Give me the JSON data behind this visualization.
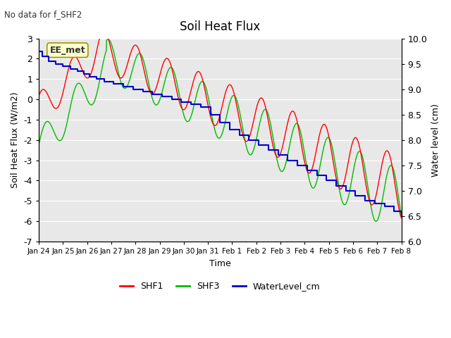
{
  "title": "Soil Heat Flux",
  "subtitle": "No data for f_SHF2",
  "xlabel": "Time",
  "ylabel_left": "Soil Heat Flux (W/m2)",
  "ylabel_right": "Water level (cm)",
  "ylim_left": [
    -7.0,
    3.0
  ],
  "ylim_right": [
    6.0,
    10.0
  ],
  "yticks_left": [
    -7,
    -6,
    -5,
    -4,
    -3,
    -2,
    -1,
    0,
    1,
    2,
    3
  ],
  "yticks_right": [
    6.0,
    6.5,
    7.0,
    7.5,
    8.0,
    8.5,
    9.0,
    9.5,
    10.0
  ],
  "bg_color": "#e8e8e8",
  "grid_color": "#ffffff",
  "fig_color": "#ffffff",
  "colors": {
    "SHF1": "#ff0000",
    "SHF3": "#00bb00",
    "WaterLevel": "#0000cc"
  },
  "annotation_box": "EE_met",
  "annotation_box_color": "#ffffcc",
  "annotation_box_edge": "#999900",
  "xtick_labels": [
    "Jan 24",
    "Jan 25",
    "Jan 26",
    "Jan 27",
    "Jan 28",
    "Jan 29",
    "Jan 30",
    "Jan 31",
    "Feb 1",
    "Feb 2",
    "Feb 3",
    "Feb 4",
    "Feb 5",
    "Feb 6",
    "Feb 7",
    "Feb 8"
  ],
  "wl_days": [
    0.0,
    0.15,
    0.4,
    0.7,
    1.0,
    1.3,
    1.6,
    1.85,
    2.1,
    2.4,
    2.7,
    3.1,
    3.5,
    3.9,
    4.3,
    4.7,
    5.1,
    5.5,
    5.9,
    6.3,
    6.7,
    7.1,
    7.5,
    7.9,
    8.3,
    8.7,
    9.1,
    9.5,
    9.9,
    10.3,
    10.7,
    11.1,
    11.5,
    11.9,
    12.3,
    12.7,
    13.1,
    13.5,
    13.9,
    14.3,
    14.7,
    15.0
  ],
  "wl_vals": [
    9.75,
    9.65,
    9.55,
    9.5,
    9.45,
    9.4,
    9.35,
    9.3,
    9.25,
    9.2,
    9.15,
    9.1,
    9.05,
    9.0,
    8.95,
    8.9,
    8.85,
    8.8,
    8.75,
    8.7,
    8.65,
    8.5,
    8.35,
    8.2,
    8.1,
    8.0,
    7.9,
    7.8,
    7.7,
    7.6,
    7.5,
    7.4,
    7.3,
    7.2,
    7.1,
    7.0,
    6.9,
    6.8,
    6.75,
    6.7,
    6.6,
    6.5
  ]
}
